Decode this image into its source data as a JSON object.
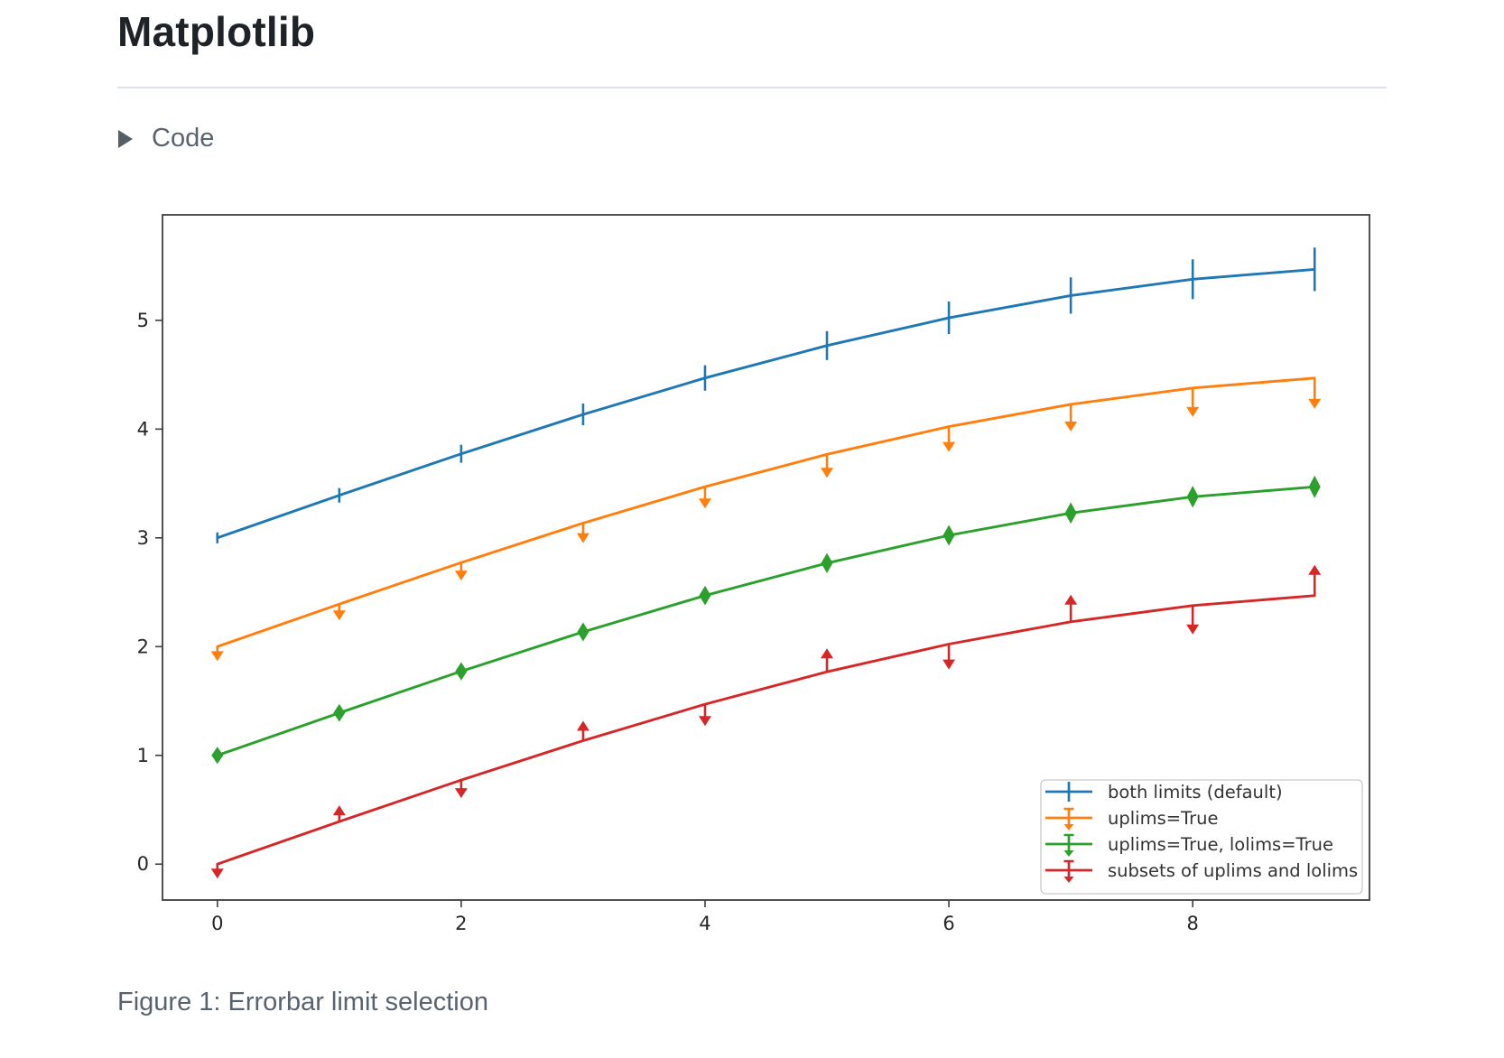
{
  "page": {
    "title": "Matplotlib",
    "code_label": "Code",
    "caption": "Figure 1: Errorbar limit selection"
  },
  "chart_data": {
    "type": "line",
    "title": "",
    "xlabel": "",
    "ylabel": "",
    "x": [
      0,
      1,
      2,
      3,
      4,
      5,
      6,
      7,
      8,
      9
    ],
    "series": [
      {
        "name": "both limits (default)",
        "color": "#1f77b4",
        "limits": "none",
        "values": [
          3.0,
          3.391,
          3.773,
          4.135,
          4.47,
          4.768,
          5.023,
          5.228,
          5.378,
          5.469
        ]
      },
      {
        "name": "uplims=True",
        "color": "#ff7f0e",
        "limits": "uplims",
        "values": [
          2.0,
          2.391,
          2.773,
          3.135,
          3.47,
          3.768,
          4.023,
          4.228,
          4.378,
          4.469
        ]
      },
      {
        "name": "uplims=True, lolims=True",
        "color": "#2ca02c",
        "limits": "both",
        "values": [
          1.0,
          1.391,
          1.773,
          2.135,
          2.47,
          2.768,
          3.023,
          3.228,
          3.378,
          3.469
        ]
      },
      {
        "name": "subsets of uplims and lolims",
        "color": "#d62728",
        "limits": "alternating",
        "values": [
          0.0,
          0.391,
          0.773,
          1.135,
          1.47,
          1.768,
          2.023,
          2.228,
          2.378,
          2.469
        ]
      }
    ],
    "yerr": [
      0.05,
      0.067,
      0.083,
      0.1,
      0.117,
      0.133,
      0.15,
      0.167,
      0.183,
      0.2
    ],
    "xticks": [
      0,
      2,
      4,
      6,
      8
    ],
    "yticks": [
      0,
      1,
      2,
      3,
      4,
      5
    ],
    "xlim": [
      -0.45,
      9.45
    ],
    "ylim": [
      -0.33,
      5.97
    ],
    "grid": false,
    "legend_position": "lower right"
  }
}
